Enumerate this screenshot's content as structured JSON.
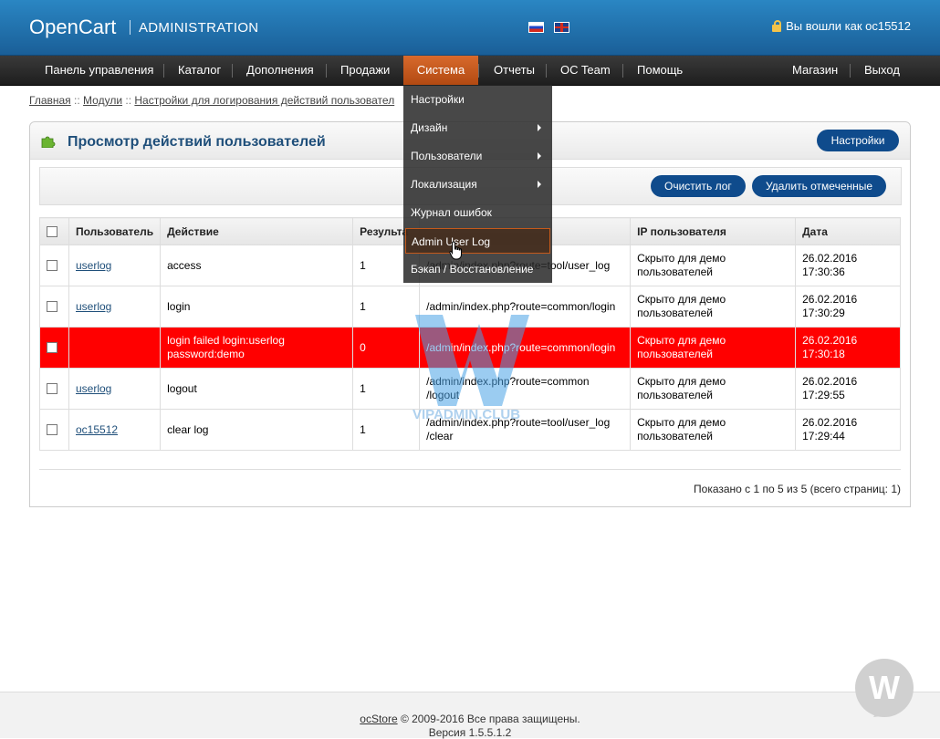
{
  "header": {
    "brand": "OpenCart",
    "subtitle": "ADMINISTRATION",
    "login_text": "Вы вошли как oc15512"
  },
  "menu": {
    "items": [
      "Панель управления",
      "Каталог",
      "Дополнения",
      "Продажи",
      "Система",
      "Отчеты",
      "OC Team",
      "Помощь"
    ],
    "right": [
      "Магазин",
      "Выход"
    ],
    "active": "Система"
  },
  "dropdown": {
    "items": [
      "Настройки",
      "Дизайн",
      "Пользователи",
      "Локализация",
      "Журнал ошибок",
      "Admin User Log",
      "Бэкап / Восстановление"
    ],
    "hovered": "Admin User Log"
  },
  "breadcrumb": {
    "items": [
      "Главная",
      "Модули",
      "Настройки для логирования действий пользовател"
    ],
    "separator": "::"
  },
  "panel": {
    "title": "Просмотр действий пользователей",
    "settings_button": "Настройки",
    "clear_button": "Очистить лог",
    "delete_button": "Удалить отмеченные"
  },
  "table": {
    "headers": [
      "Пользователь",
      "Действие",
      "Результа",
      "IP пользователя",
      "Дата"
    ],
    "rows": [
      {
        "user": "userlog",
        "action": "access",
        "result": "1",
        "url": "/admin/index.php?route=tool/user_log",
        "ip": "Скрыто для демо пользователей",
        "date": "26.02.2016",
        "time": "17:30:36"
      },
      {
        "user": "userlog",
        "action": "login",
        "result": "1",
        "url": "/admin/index.php?route=common/login",
        "ip": "Скрыто для демо пользователей",
        "date": "26.02.2016",
        "time": "17:30:29"
      },
      {
        "user": "",
        "action": "login failed login:userlog password:demo",
        "result": "0",
        "url": "/admin/index.php?route=common/login",
        "ip": "Скрыто для демо пользователей",
        "date": "26.02.2016",
        "time": "17:30:18",
        "failed": true
      },
      {
        "user": "userlog",
        "action": "logout",
        "result": "1",
        "url": "/admin/index.php?route=common /logout",
        "ip": "Скрыто для демо пользователей",
        "date": "26.02.2016",
        "time": "17:29:55"
      },
      {
        "user": "oc15512",
        "action": "clear log",
        "result": "1",
        "url": "/admin/index.php?route=tool/user_log /clear",
        "ip": "Скрыто для демо пользователей",
        "date": "26.02.2016",
        "time": "17:29:44"
      }
    ]
  },
  "pagination": "Показано с 1 по 5 из 5 (всего страниц: 1)",
  "watermark": "VIPADMIN.CLUB",
  "footer": {
    "link": "ocStore",
    "copyright": " © 2009-2016 Все права защищены.",
    "version": "Версия 1.5.5.1.2"
  },
  "colors": {
    "header": "#1a5f98",
    "menubar": "#2a2a2a",
    "active_menu": "#c4561c",
    "button": "#0f4b8c",
    "failed_row": "#ff0000",
    "title": "#1f4f7a"
  },
  "icons": [
    "lock-icon",
    "flag-ru-icon",
    "flag-en-icon",
    "puzzle-icon",
    "chevron-right-icon",
    "hand-cursor-icon",
    "checkbox-icon"
  ]
}
